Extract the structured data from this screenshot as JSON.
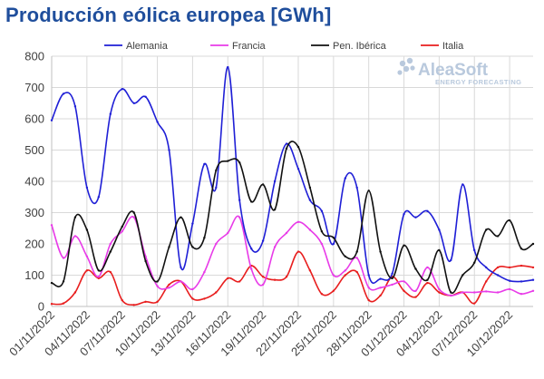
{
  "chart_data": {
    "type": "line",
    "title": "Producción eólica europea [GWh]",
    "xlabel": "",
    "ylabel": "",
    "ylim": [
      0,
      800
    ],
    "yticks": [
      0,
      100,
      200,
      300,
      400,
      500,
      600,
      700,
      800
    ],
    "grid": true,
    "legend_position": "top",
    "x_tick_labels": [
      "01/11/2022",
      "04/11/2022",
      "07/11/2022",
      "10/11/2022",
      "13/11/2022",
      "16/11/2022",
      "19/11/2022",
      "22/11/2022",
      "25/11/2022",
      "28/11/2022",
      "01/12/2022",
      "04/12/2022",
      "07/12/2022",
      "10/12/2022"
    ],
    "x": [
      "01/11/2022",
      "02/11/2022",
      "03/11/2022",
      "04/11/2022",
      "05/11/2022",
      "06/11/2022",
      "07/11/2022",
      "08/11/2022",
      "09/11/2022",
      "10/11/2022",
      "11/11/2022",
      "12/11/2022",
      "13/11/2022",
      "14/11/2022",
      "15/11/2022",
      "16/11/2022",
      "17/11/2022",
      "18/11/2022",
      "19/11/2022",
      "20/11/2022",
      "21/11/2022",
      "22/11/2022",
      "23/11/2022",
      "24/11/2022",
      "25/11/2022",
      "26/11/2022",
      "27/11/2022",
      "28/11/2022",
      "29/11/2022",
      "30/11/2022",
      "01/12/2022",
      "02/12/2022",
      "03/12/2022",
      "04/12/2022",
      "05/12/2022",
      "06/12/2022",
      "07/12/2022",
      "08/12/2022",
      "09/12/2022",
      "10/12/2022",
      "11/12/2022",
      "12/12/2022"
    ],
    "series": [
      {
        "name": "Alemania",
        "color": "#1f1fd6",
        "values": [
          595,
          680,
          640,
          380,
          350,
          615,
          695,
          650,
          670,
          590,
          500,
          125,
          265,
          455,
          380,
          765,
          340,
          185,
          210,
          400,
          520,
          440,
          340,
          305,
          200,
          410,
          380,
          100,
          88,
          105,
          295,
          285,
          305,
          245,
          148,
          390,
          180,
          125,
          100,
          82,
          80,
          85
        ]
      },
      {
        "name": "Francia",
        "color": "#e83be8",
        "values": [
          260,
          155,
          225,
          160,
          95,
          200,
          240,
          285,
          160,
          65,
          60,
          80,
          55,
          110,
          200,
          235,
          285,
          120,
          70,
          190,
          235,
          270,
          245,
          200,
          100,
          115,
          155,
          60,
          60,
          70,
          80,
          50,
          125,
          55,
          35,
          45,
          45,
          48,
          45,
          55,
          40,
          50
        ]
      },
      {
        "name": "Pen. Ibérica",
        "color": "#111111",
        "values": [
          75,
          80,
          285,
          245,
          115,
          175,
          255,
          300,
          145,
          80,
          190,
          285,
          190,
          220,
          435,
          465,
          460,
          335,
          390,
          310,
          505,
          510,
          380,
          240,
          220,
          160,
          175,
          370,
          175,
          90,
          195,
          120,
          85,
          180,
          45,
          100,
          140,
          245,
          225,
          275,
          185,
          200
        ]
      },
      {
        "name": "Italia",
        "color": "#e81e1e",
        "values": [
          8,
          10,
          45,
          115,
          90,
          110,
          20,
          5,
          15,
          15,
          70,
          80,
          25,
          25,
          45,
          90,
          80,
          130,
          95,
          85,
          95,
          175,
          115,
          40,
          50,
          100,
          110,
          20,
          35,
          95,
          50,
          30,
          75,
          45,
          35,
          45,
          10,
          80,
          125,
          125,
          130,
          125
        ]
      }
    ]
  },
  "branding": {
    "name": "AleaSoft",
    "tagline": "ENERGY FORECASTING"
  }
}
